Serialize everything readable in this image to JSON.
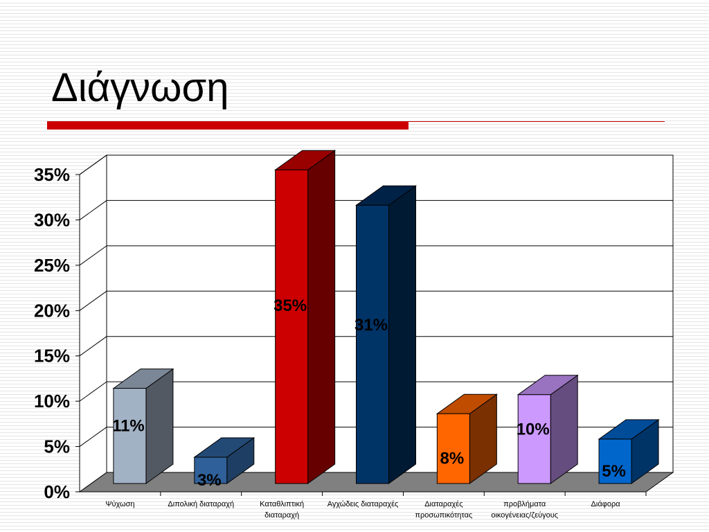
{
  "slide": {
    "title": "Διάγνωση"
  },
  "chart_data": {
    "type": "bar",
    "title": "",
    "xlabel": "",
    "ylabel": "",
    "ylim": [
      0,
      35
    ],
    "yticks": [
      "0%",
      "5%",
      "10%",
      "15%",
      "20%",
      "25%",
      "30%",
      "35%"
    ],
    "grid": true,
    "legend": "none",
    "categories": [
      [
        "Ψύχωση"
      ],
      [
        "Διπολική διαταραχή"
      ],
      [
        "Καταθλιπτική",
        "διαταραχή"
      ],
      [
        "Αγχώδεις διαταραχές"
      ],
      [
        "Διαταραχές",
        "προσωπικότητας"
      ],
      [
        "προβλήματα",
        "οικογένειας/ζεύγους"
      ],
      [
        "Διάφορα"
      ]
    ],
    "values": [
      10.5,
      2.9,
      34.6,
      30.7,
      7.7,
      9.8,
      4.9
    ],
    "data_labels": [
      "11%",
      "3%",
      "35%",
      "31%",
      "8%",
      "10%",
      "5%"
    ],
    "colors": {
      "front": [
        "#a2b2c5",
        "#2f6099",
        "#cc0000",
        "#003366",
        "#ff6600",
        "#cc99ff",
        "#0066cc"
      ],
      "side": [
        "#525962",
        "#1f3e63",
        "#660000",
        "#001a33",
        "#7a3000",
        "#664d80",
        "#003366"
      ],
      "top": [
        "#7b8796",
        "#234a75",
        "#990000",
        "#002246",
        "#c04c00",
        "#9973bf",
        "#004c99"
      ],
      "floor": "#808080",
      "walls": "#ffffff",
      "grid": "#000000"
    }
  }
}
